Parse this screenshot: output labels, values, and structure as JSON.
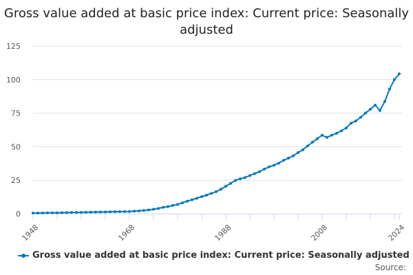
{
  "chart_data": {
    "type": "line",
    "title": "Gross value added at basic price index: Current price: Seasonally adjusted",
    "xlabel": "",
    "ylabel": "",
    "xlim": [
      1948,
      2024
    ],
    "ylim": [
      0,
      125
    ],
    "yticks": [
      0,
      25,
      50,
      75,
      100,
      125
    ],
    "xtick_labels": [
      "1948",
      "1968",
      "1988",
      "2008",
      "2024"
    ],
    "grid": true,
    "legend_position": "bottom",
    "color": "#0077c0",
    "series": [
      {
        "name": "Gross value added at basic price index: Current price: Seasonally adjusted",
        "x": [
          1948,
          1949,
          1950,
          1951,
          1952,
          1953,
          1954,
          1955,
          1956,
          1957,
          1958,
          1959,
          1960,
          1961,
          1962,
          1963,
          1964,
          1965,
          1966,
          1967,
          1968,
          1969,
          1970,
          1971,
          1972,
          1973,
          1974,
          1975,
          1976,
          1977,
          1978,
          1979,
          1980,
          1981,
          1982,
          1983,
          1984,
          1985,
          1986,
          1987,
          1988,
          1989,
          1990,
          1991,
          1992,
          1993,
          1994,
          1995,
          1996,
          1997,
          1998,
          1999,
          2000,
          2001,
          2002,
          2003,
          2004,
          2005,
          2006,
          2007,
          2008,
          2009,
          2010,
          2011,
          2012,
          2013,
          2014,
          2015,
          2016,
          2017,
          2018,
          2019,
          2020,
          2021,
          2022,
          2023,
          2024
        ],
        "values": [
          0.6,
          0.6,
          0.65,
          0.7,
          0.75,
          0.8,
          0.85,
          0.9,
          1.0,
          1.05,
          1.1,
          1.15,
          1.2,
          1.3,
          1.35,
          1.4,
          1.5,
          1.55,
          1.6,
          1.65,
          1.7,
          2.0,
          2.2,
          2.5,
          2.9,
          3.4,
          4.0,
          4.8,
          5.4,
          6.2,
          7.0,
          8.2,
          9.4,
          10.5,
          11.6,
          12.8,
          13.9,
          15.2,
          16.5,
          18.3,
          20.5,
          22.7,
          24.9,
          26.1,
          27.0,
          28.5,
          30.0,
          31.4,
          33.3,
          35.0,
          36.2,
          37.7,
          39.8,
          41.5,
          43.2,
          45.6,
          47.8,
          50.6,
          53.4,
          56.0,
          58.6,
          56.9,
          58.6,
          60.0,
          61.8,
          64.0,
          67.5,
          69.2,
          71.9,
          75.1,
          77.9,
          81.0,
          77.0,
          83.7,
          93.0,
          100.0,
          104.3
        ]
      }
    ]
  },
  "legend": {
    "label": "Gross value added at basic price index: Current price: Seasonally adjusted"
  },
  "source_label": "Source:"
}
